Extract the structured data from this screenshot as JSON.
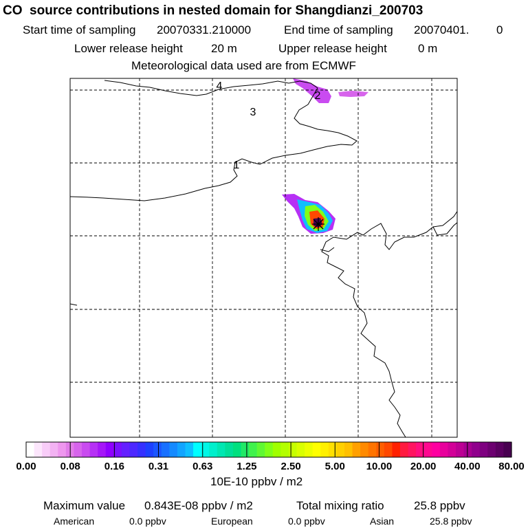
{
  "header": {
    "title": "CO  source contributions in nested domain for Shangdianzi_200703",
    "start_label": "Start time of sampling",
    "start_value": "20070331.210000",
    "end_label": "End time of sampling",
    "end_value": "20070401.",
    "end_extra": "0",
    "lower_label": "Lower release height",
    "lower_value": "20 m",
    "upper_label": "Upper release height",
    "upper_value": "0 m",
    "met_line": "Meteorological data used are from ECMWF"
  },
  "chart_data": {
    "type": "heatmap",
    "title": "CO  source contributions in nested domain for Shangdianzi_200703",
    "map_labels": [
      "1",
      "2",
      "3",
      "4"
    ],
    "receptor_marker": "*",
    "colorbar": {
      "ticks": [
        "0.00",
        "0.08",
        "0.16",
        "0.31",
        "0.63",
        "1.25",
        "2.50",
        "5.00",
        "10.00",
        "20.00",
        "40.00",
        "80.00"
      ],
      "unit": "10E-10 ppbv / m2",
      "colors": [
        "#ffffff",
        "#fce6fc",
        "#f8ccf8",
        "#f3b2f3",
        "#ee97ee",
        "#e27de9",
        "#d764ec",
        "#c94bf0",
        "#b630f5",
        "#a516f8",
        "#8f00ff",
        "#7a10ff",
        "#6420ff",
        "#4d28ff",
        "#3530ff",
        "#1e40ff",
        "#1b56ff",
        "#1870ff",
        "#158aff",
        "#12a4ff",
        "#0fbfff",
        "#00ffff",
        "#00f7e6",
        "#00efcc",
        "#00e7b2",
        "#00df99",
        "#00e07f",
        "#20e966",
        "#40f24c",
        "#60f833",
        "#80ff19",
        "#a0ff00",
        "#b3ff00",
        "#c6ff00",
        "#d9ff00",
        "#ecff00",
        "#ffff00",
        "#fff000",
        "#ffe000",
        "#ffd000",
        "#ffc000",
        "#ffa000",
        "#ff8a00",
        "#ff7400",
        "#ff5e00",
        "#ff4800",
        "#ff2000",
        "#ff1a40",
        "#ff1460",
        "#ff0e80",
        "#ff0890",
        "#ff00a0",
        "#e8009c",
        "#d20098",
        "#bc0094",
        "#a60090",
        "#90008c",
        "#7e0080",
        "#6c0070",
        "#5a0060",
        "#480050"
      ]
    },
    "plume": [
      {
        "zone": "core",
        "level": 60
      },
      {
        "zone": "inner",
        "level": 45
      },
      {
        "zone": "mid",
        "level": 30
      },
      {
        "zone": "outer",
        "level": 20
      },
      {
        "zone": "fringe",
        "level": 8
      },
      {
        "zone": "north",
        "level": 7
      }
    ]
  },
  "footer": {
    "max_label": "Maximum value",
    "max_value": "0.843E-08 ppbv / m2",
    "total_label": "Total mixing ratio",
    "total_value": "25.8 ppbv",
    "american_label": "American",
    "american_value": "0.0 ppbv",
    "european_label": "European",
    "european_value": "0.0 ppbv",
    "asian_label": "Asian",
    "asian_value": "25.8 ppbv"
  }
}
